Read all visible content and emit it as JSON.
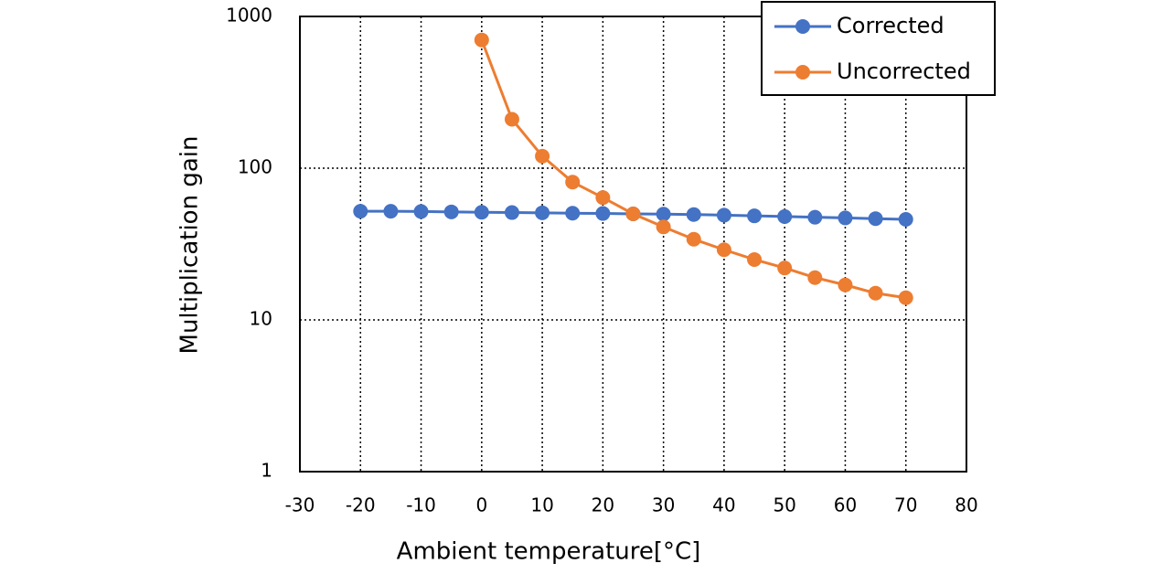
{
  "chart_data": {
    "type": "line",
    "x_label": "Ambient temperature[°C]",
    "y_label": "Multiplication gain",
    "x": [
      -20,
      -15,
      -10,
      -5,
      0,
      5,
      10,
      15,
      20,
      25,
      30,
      35,
      40,
      45,
      50,
      55,
      60,
      65,
      70
    ],
    "series": [
      {
        "name": "Corrected",
        "color": "#4472c4",
        "values": [
          52,
          52,
          51.8,
          51.5,
          51.2,
          51,
          50.8,
          50.5,
          50.3,
          50,
          49.8,
          49.5,
          49,
          48.5,
          48,
          47.5,
          47,
          46.5,
          46
        ]
      },
      {
        "name": "Uncorrected",
        "color": "#ed7d31",
        "values": [
          null,
          null,
          null,
          null,
          700,
          210,
          120,
          81,
          64,
          50,
          41,
          34,
          29,
          25,
          22,
          19,
          17,
          15,
          14
        ]
      }
    ],
    "xlim": [
      -30,
      80
    ],
    "xticks": [
      -30,
      -20,
      -10,
      0,
      10,
      20,
      30,
      40,
      50,
      60,
      70,
      80
    ],
    "ylim": [
      1,
      1000
    ],
    "yticks": [
      1,
      10,
      100,
      1000
    ],
    "log_y": true,
    "grid": true,
    "legend": "upper right"
  }
}
